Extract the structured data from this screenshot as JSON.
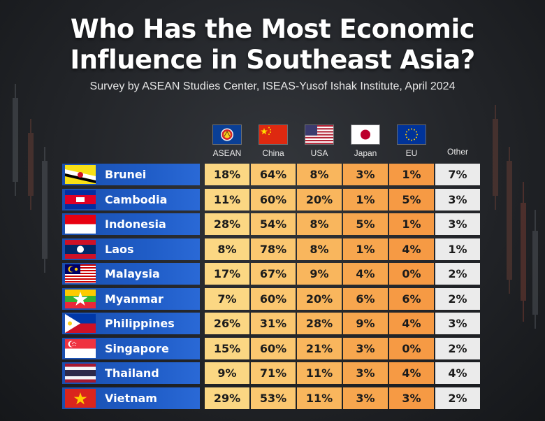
{
  "title_lines": [
    "Who Has the Most Economic",
    "Influence in Southeast Asia?"
  ],
  "subtitle": "Survey by ASEAN Studies Center, ISEAS-Yusof Ishak Institute, April 2024",
  "chart_data": {
    "type": "table",
    "title": "Who Has the Most Economic Influence in Southeast Asia?",
    "subtitle": "Survey by ASEAN Studies Center, ISEAS-Yusof Ishak Institute, April 2024",
    "columns": [
      "ASEAN",
      "China",
      "USA",
      "Japan",
      "EU",
      "Other"
    ],
    "column_flags": [
      "asean-flag-icon",
      "china-flag-icon",
      "usa-flag-icon",
      "japan-flag-icon",
      "eu-flag-icon",
      ""
    ],
    "rows": [
      {
        "country": "Brunei",
        "flag": "brunei-flag-icon",
        "values": [
          "18%",
          "64%",
          "8%",
          "3%",
          "1%",
          "7%"
        ]
      },
      {
        "country": "Cambodia",
        "flag": "cambodia-flag-icon",
        "values": [
          "11%",
          "60%",
          "20%",
          "1%",
          "5%",
          "3%"
        ]
      },
      {
        "country": "Indonesia",
        "flag": "indonesia-flag-icon",
        "values": [
          "28%",
          "54%",
          "8%",
          "5%",
          "1%",
          "3%"
        ]
      },
      {
        "country": "Laos",
        "flag": "laos-flag-icon",
        "values": [
          "8%",
          "78%",
          "8%",
          "1%",
          "4%",
          "1%"
        ]
      },
      {
        "country": "Malaysia",
        "flag": "malaysia-flag-icon",
        "values": [
          "17%",
          "67%",
          "9%",
          "4%",
          "0%",
          "2%"
        ]
      },
      {
        "country": "Myanmar",
        "flag": "myanmar-flag-icon",
        "values": [
          "7%",
          "60%",
          "20%",
          "6%",
          "6%",
          "2%"
        ]
      },
      {
        "country": "Philippines",
        "flag": "philippines-flag-icon",
        "values": [
          "26%",
          "31%",
          "28%",
          "9%",
          "4%",
          "3%"
        ]
      },
      {
        "country": "Singapore",
        "flag": "singapore-flag-icon",
        "values": [
          "15%",
          "60%",
          "21%",
          "3%",
          "0%",
          "2%"
        ]
      },
      {
        "country": "Thailand",
        "flag": "thailand-flag-icon",
        "values": [
          "9%",
          "71%",
          "11%",
          "3%",
          "4%",
          "4%"
        ]
      },
      {
        "country": "Vietnam",
        "flag": "vietnam-flag-icon",
        "values": [
          "29%",
          "53%",
          "11%",
          "3%",
          "3%",
          "2%"
        ]
      }
    ]
  },
  "colors": {
    "label_blue": "#1f5cc6",
    "cell_shades": [
      "#fbd783",
      "#fbc770",
      "#f9b65d",
      "#f7a64e",
      "#f69a44",
      "#ebebeb"
    ],
    "title": "#ffffff"
  }
}
